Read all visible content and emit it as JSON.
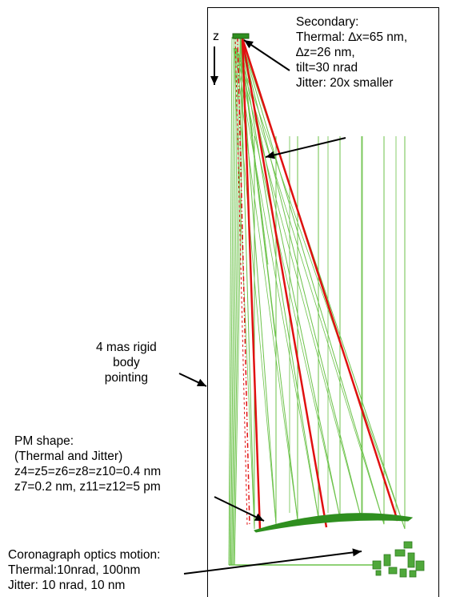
{
  "axis_label": "z",
  "secondary": {
    "lines": [
      "Secondary:",
      "Thermal: ∆x=65 nm,",
      "∆z=26 nm,",
      "tilt=30 nrad",
      "Jitter: 20x smaller"
    ]
  },
  "rigid_body": {
    "lines": [
      "4 mas rigid",
      "body",
      "pointing"
    ]
  },
  "pm_shape": {
    "lines": [
      "PM shape:",
      "(Thermal and Jitter)",
      "z4=z5=z6=z8=z10=0.4 nm",
      "z7=0.2 nm, z11=z12=5 pm"
    ]
  },
  "coronagraph": {
    "lines": [
      "Coronagraph optics motion:",
      "Thermal:10nrad, 100nm",
      "Jitter: 10 nrad, 10 nm"
    ]
  },
  "colors": {
    "ray_green": "#6cc24a",
    "ray_red": "#e01010",
    "mirror_green": "#2f8f1f",
    "frame": "#000000"
  }
}
